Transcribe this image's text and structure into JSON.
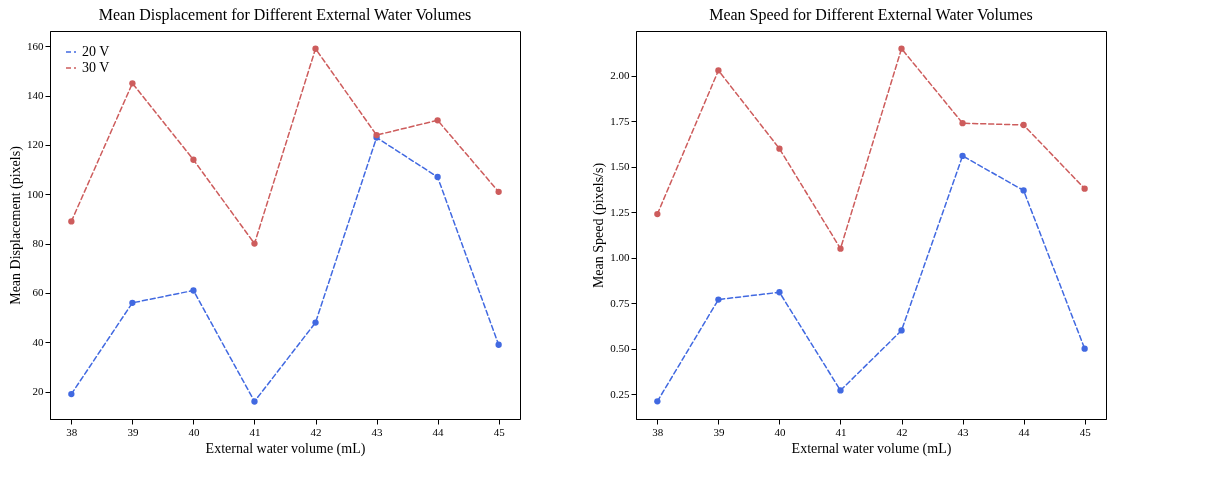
{
  "chart_data": [
    {
      "type": "line",
      "title": "Mean Displacement for Different External Water Volumes",
      "xlabel": "External water volume (mL)",
      "ylabel": "Mean Displacement (pixels)",
      "x": [
        38,
        39,
        40,
        41,
        42,
        43,
        44,
        45
      ],
      "series": [
        {
          "name": "20 V",
          "color": "#4169e1",
          "values": [
            19,
            56,
            61,
            16,
            48,
            123,
            107,
            39
          ]
        },
        {
          "name": "30 V",
          "color": "#cd5c5c",
          "values": [
            89,
            145,
            114,
            80,
            159,
            124,
            130,
            101
          ]
        }
      ],
      "xlim": [
        37.65,
        45.35
      ],
      "xticks": [
        38,
        39,
        40,
        41,
        42,
        43,
        44,
        45
      ],
      "ylim": [
        8.9,
        166.2
      ],
      "yticks": [
        20,
        40,
        60,
        80,
        100,
        120,
        140,
        160
      ],
      "legend": "top left",
      "marker": "circle",
      "line_style": "dashed"
    },
    {
      "type": "line",
      "title": "Mean Speed for Different External Water Volumes",
      "xlabel": "External water volume (mL)",
      "ylabel": "Mean Speed (pixels/s)",
      "x": [
        38,
        39,
        40,
        41,
        42,
        43,
        44,
        45
      ],
      "series": [
        {
          "name": "20 V",
          "color": "#4169e1",
          "values": [
            0.21,
            0.77,
            0.81,
            0.27,
            0.6,
            1.56,
            1.37,
            0.5
          ]
        },
        {
          "name": "30 V",
          "color": "#cd5c5c",
          "values": [
            1.24,
            2.03,
            1.6,
            1.05,
            2.15,
            1.74,
            1.73,
            1.38
          ]
        }
      ],
      "xlim": [
        37.65,
        45.35
      ],
      "xticks": [
        38,
        39,
        40,
        41,
        42,
        43,
        44,
        45
      ],
      "ylim": [
        0.113,
        2.247
      ],
      "yticks": [
        {
          "value": 0.25,
          "label": "0.25"
        },
        {
          "value": 0.5,
          "label": "0.50"
        },
        {
          "value": 0.75,
          "label": "0.75"
        },
        {
          "value": 1,
          "label": "1.00"
        },
        {
          "value": 1.25,
          "label": "1.25"
        },
        {
          "value": 1.5,
          "label": "1.50"
        },
        {
          "value": 1.75,
          "label": "1.75"
        },
        {
          "value": 2,
          "label": "2.00"
        }
      ],
      "legend": "top left",
      "marker": "circle",
      "line_style": "dashed"
    }
  ]
}
